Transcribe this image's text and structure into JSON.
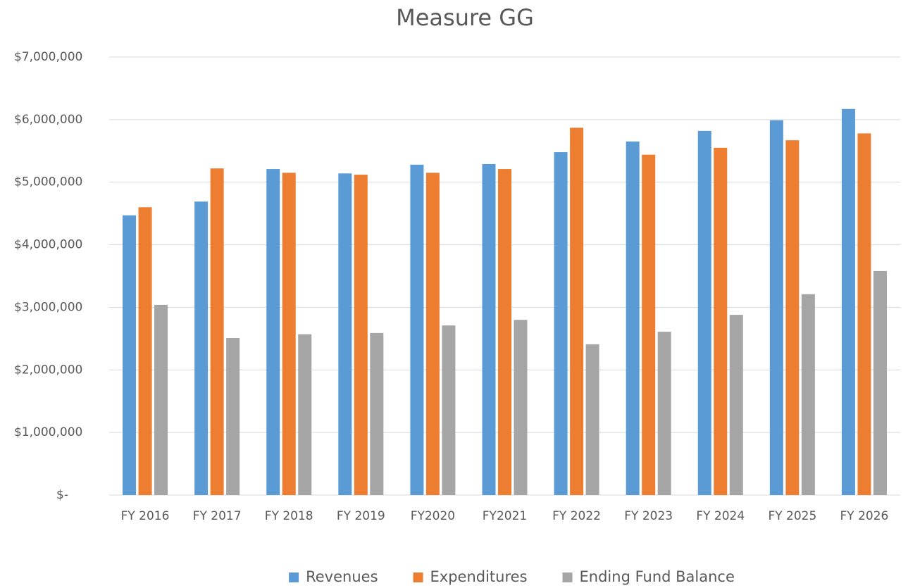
{
  "chart_data": {
    "type": "bar",
    "title": "Measure GG",
    "categories": [
      "FY 2016",
      "FY 2017",
      "FY 2018",
      "FY 2019",
      "FY2020",
      "FY2021",
      "FY 2022",
      "FY 2023",
      "FY 2024",
      "FY 2025",
      "FY 2026"
    ],
    "series": [
      {
        "name": "Revenues",
        "color": "#5b9bd5",
        "values": [
          4470000,
          4690000,
          5210000,
          5140000,
          5280000,
          5290000,
          5480000,
          5650000,
          5820000,
          5990000,
          6170000
        ]
      },
      {
        "name": "Expenditures",
        "color": "#ed7d31",
        "values": [
          4600000,
          5220000,
          5150000,
          5120000,
          5150000,
          5210000,
          5870000,
          5440000,
          5550000,
          5670000,
          5780000
        ]
      },
      {
        "name": "Ending Fund Balance",
        "color": "#a5a5a5",
        "values": [
          3040000,
          2510000,
          2570000,
          2590000,
          2710000,
          2800000,
          2410000,
          2610000,
          2880000,
          3210000,
          3580000
        ]
      }
    ],
    "ylim": [
      0,
      7000000
    ],
    "yticks": [
      {
        "value": 0,
        "label": "$-"
      },
      {
        "value": 1000000,
        "label": "$1,000,000"
      },
      {
        "value": 2000000,
        "label": "$2,000,000"
      },
      {
        "value": 3000000,
        "label": "$3,000,000"
      },
      {
        "value": 4000000,
        "label": "$4,000,000"
      },
      {
        "value": 5000000,
        "label": "$5,000,000"
      },
      {
        "value": 6000000,
        "label": "$6,000,000"
      },
      {
        "value": 7000000,
        "label": "$7,000,000"
      }
    ],
    "grid": true,
    "legend": "bottom"
  }
}
